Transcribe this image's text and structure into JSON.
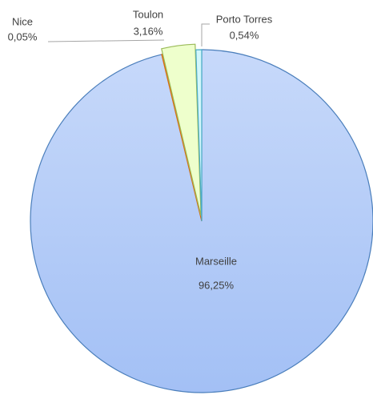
{
  "chart_data": {
    "type": "pie",
    "categories": [
      "Marseille",
      "Nice",
      "Toulon",
      "Porto Torres"
    ],
    "values": [
      96.25,
      0.05,
      3.16,
      0.54
    ],
    "value_labels": [
      "96,25%",
      "0,05%",
      "3,16%",
      "0,54%"
    ],
    "colors": [
      "#a9c5f7",
      "#f8a66a",
      "#eeffcc",
      "#d2f6fb"
    ],
    "edge_colors": [
      "#4a7ebb",
      "#e46c0a",
      "#9bbb59",
      "#4bacc6"
    ],
    "explode": [
      false,
      false,
      true,
      false
    ]
  }
}
